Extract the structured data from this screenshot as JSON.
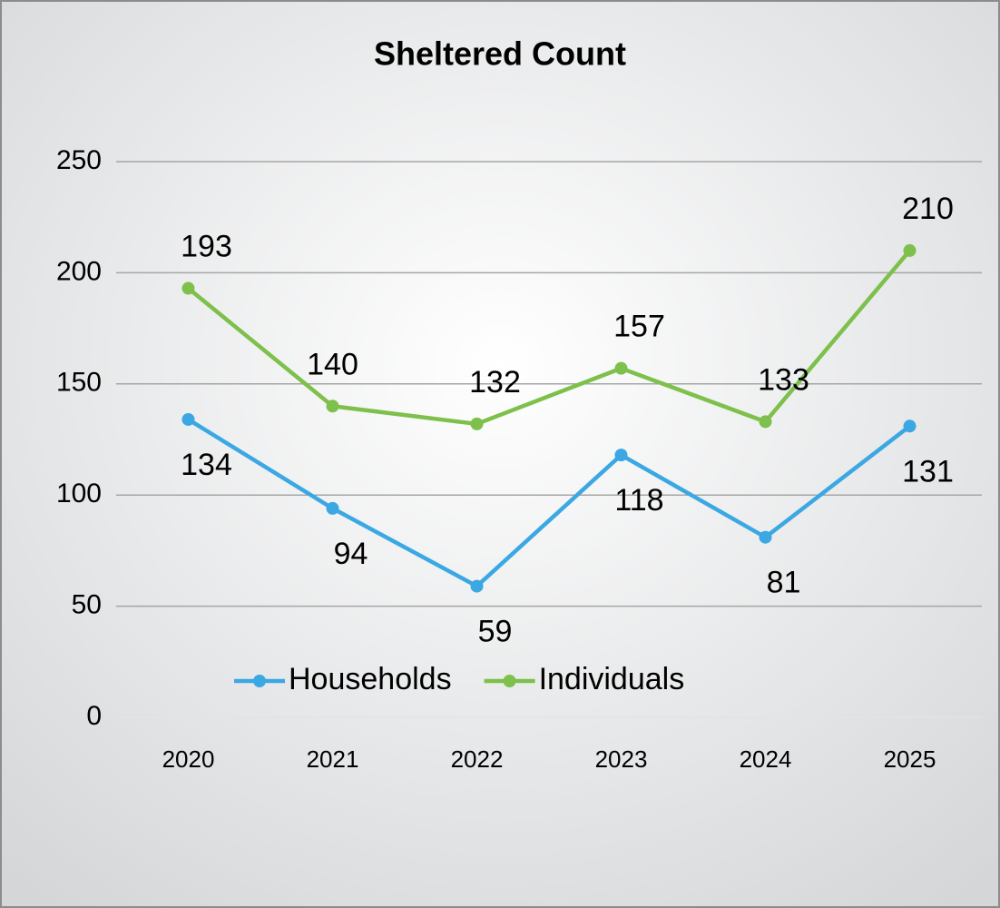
{
  "chart_data": {
    "type": "line",
    "title": "Sheltered Count",
    "categories": [
      "2020",
      "2021",
      "2022",
      "2023",
      "2024",
      "2025"
    ],
    "series": [
      {
        "name": "Households",
        "color": "#3ba7e3",
        "values": [
          134,
          94,
          59,
          118,
          81,
          131
        ]
      },
      {
        "name": "Individuals",
        "color": "#7dc04b",
        "values": [
          193,
          140,
          132,
          157,
          133,
          210
        ]
      }
    ],
    "ylim": [
      0,
      250
    ],
    "yticks": [
      0,
      50,
      100,
      150,
      200,
      250
    ],
    "grid": true,
    "legend": "bottom"
  }
}
